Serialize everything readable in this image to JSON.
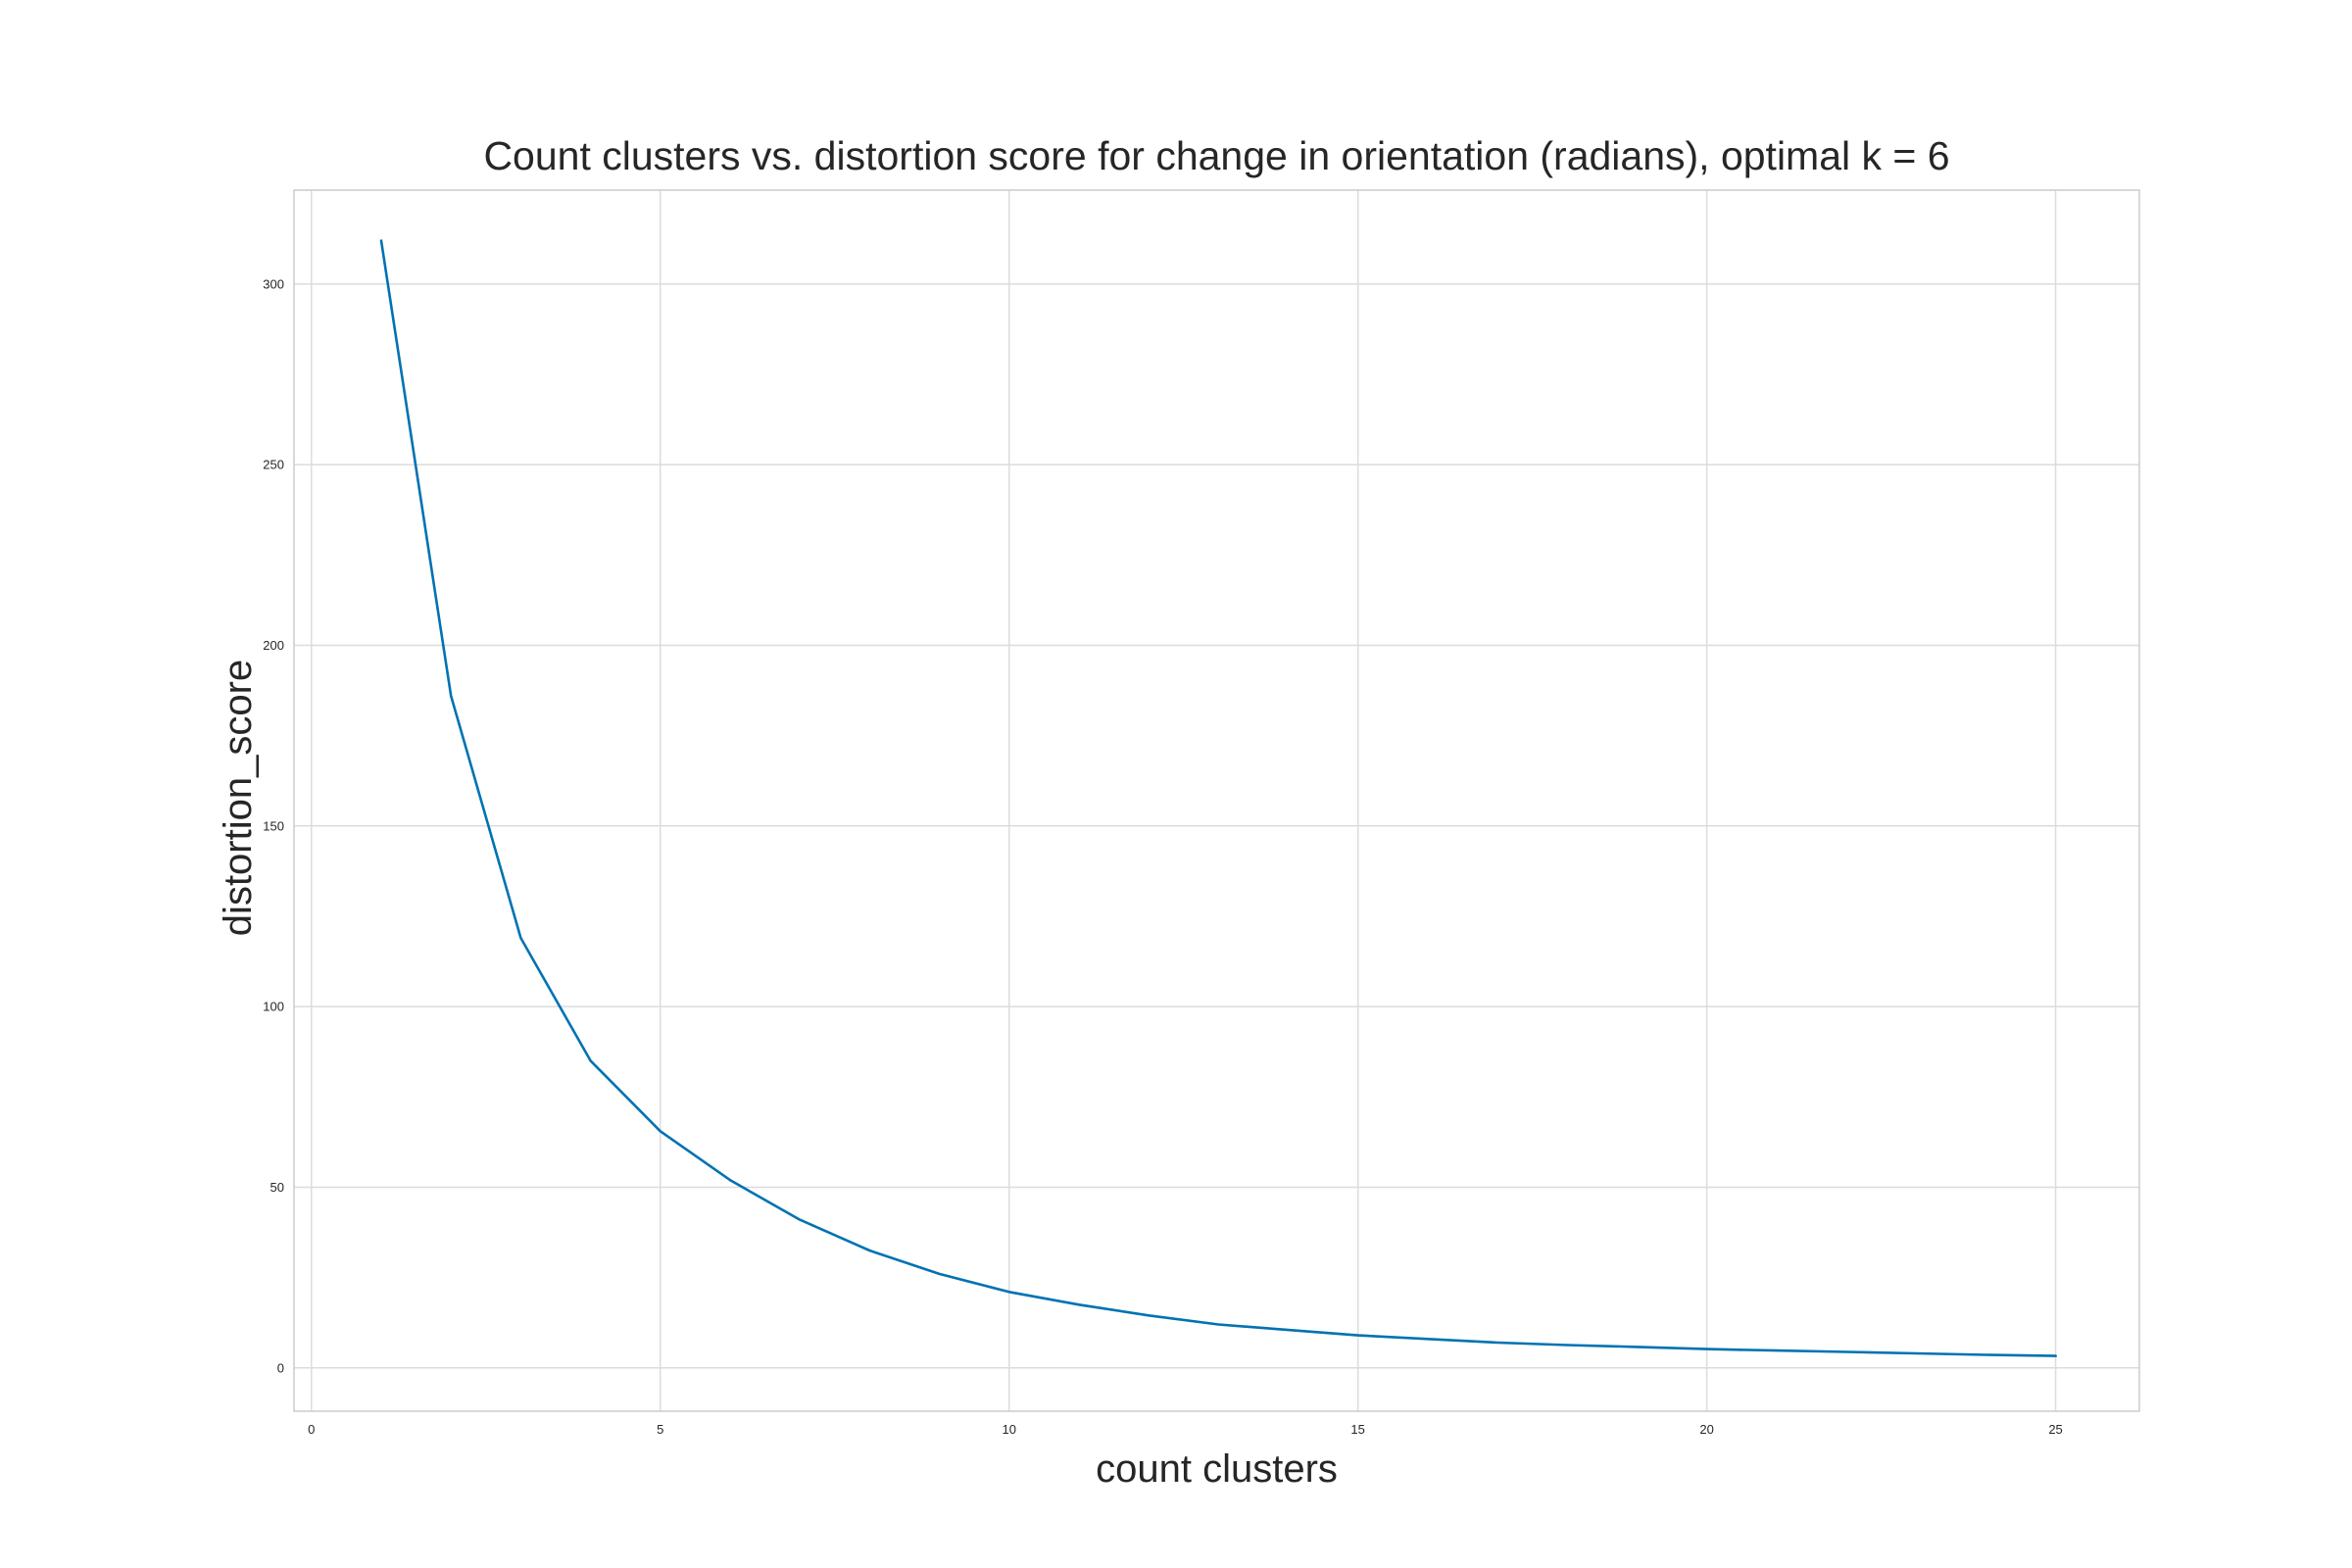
{
  "chart_data": {
    "type": "line",
    "title": "Count clusters vs. distortion score for change in orientation (radians), optimal k = 6",
    "xlabel": "count clusters",
    "ylabel": "distortion_score",
    "xlim": [
      -0.25,
      26.2
    ],
    "ylim": [
      -12,
      326
    ],
    "xticks": [
      0,
      5,
      10,
      15,
      20,
      25
    ],
    "yticks": [
      0,
      50,
      100,
      150,
      200,
      250,
      300
    ],
    "grid": true,
    "legend": "none",
    "series": [
      {
        "color": "#0072B2",
        "x": [
          1,
          2,
          3,
          4,
          5,
          6,
          7,
          8,
          9,
          10,
          11,
          12,
          13,
          14,
          15,
          16,
          17,
          18,
          19,
          20,
          21,
          22,
          23,
          24,
          25
        ],
        "y": [
          312,
          186,
          119,
          85,
          65.5,
          52,
          41,
          32.5,
          26,
          21,
          17.5,
          14.5,
          12,
          10.5,
          9,
          8,
          7,
          6.3,
          5.8,
          5.2,
          4.8,
          4.4,
          4,
          3.6,
          3.3
        ]
      }
    ]
  }
}
